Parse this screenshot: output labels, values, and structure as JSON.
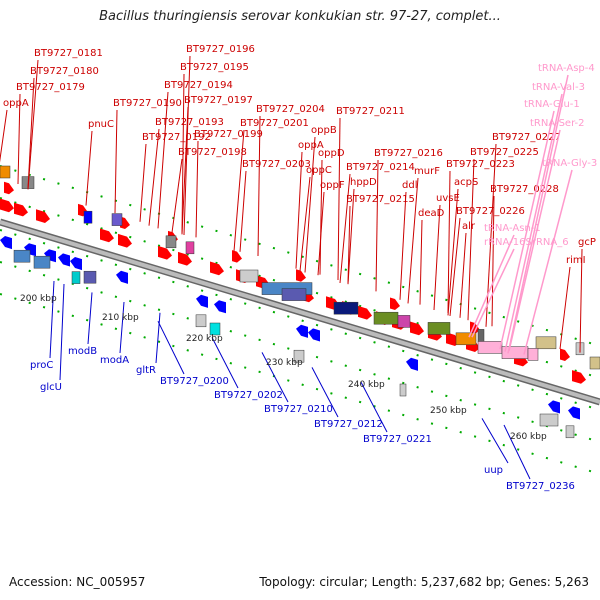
{
  "title": "Bacillus thuringiensis serovar konkukian str. 97-27, complet...",
  "footer": {
    "accession": "Accession: NC_005957",
    "topology": "Topology: circular; Length: 5,237,682 bp; Genes: 5,263"
  },
  "colors": {
    "forward_label": "#cc0000",
    "reverse_label": "#0000cc",
    "rna_label": "#ff99cc",
    "forward_gene": "#ff0000",
    "reverse_gene": "#0000ff",
    "backbone": "#999999",
    "tick": "#00aa00"
  },
  "scale": [
    {
      "label": "200 kbp"
    },
    {
      "label": "210 kbp"
    },
    {
      "label": "220 kbp"
    },
    {
      "label": "230 kbp"
    },
    {
      "label": "240 kbp"
    },
    {
      "label": "250 kbp"
    },
    {
      "label": "260 kbp"
    }
  ],
  "forward_labels": [
    "BT9727_0181",
    "BT9727_0180",
    "BT9727_0179",
    "oppA",
    "BT9727_0196",
    "BT9727_0195",
    "BT9727_0194",
    "BT9727_0197",
    "BT9727_0190",
    "BT9727_0193",
    "BT9727_0192",
    "BT9727_0199",
    "BT9727_0198",
    "pnuC",
    "BT9727_0204",
    "BT9727_0201",
    "BT9727_0203",
    "BT9727_0211",
    "oppB",
    "oppA",
    "oppD",
    "oppC",
    "oppF",
    "BT9727_0216",
    "BT9727_0214",
    "hppD",
    "BT9727_0215",
    "murF",
    "ddl",
    "deaD",
    "BT9727_0227",
    "BT9727_0225",
    "BT9727_0223",
    "acpS",
    "uvsE",
    "BT9727_0228",
    "BT9727_0226",
    "alr",
    "gcP",
    "rimI"
  ],
  "rna_labels": [
    "tRNA-Asp-4",
    "tRNA-Val-3",
    "tRNA-Glu-1",
    "tRNA-Ser-2",
    "tRNA-Gly-3",
    "tRNA-Asn-1",
    "rRNA-16SrRNA_6"
  ],
  "reverse_labels": [
    "proC",
    "glcU",
    "modB",
    "modA",
    "gltR",
    "BT9727_0200",
    "BT9727_0202",
    "BT9727_0210",
    "BT9727_0212",
    "BT9727_0221",
    "uup",
    "BT9727_0236"
  ]
}
